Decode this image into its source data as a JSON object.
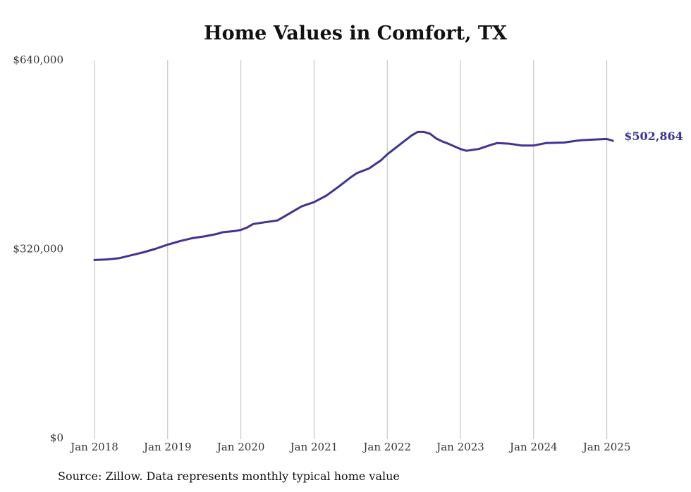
{
  "chart_data": {
    "type": "line",
    "title": "Home Values in Comfort, TX",
    "source": "Source: Zillow. Data represents monthly typical home value",
    "xlabel": "",
    "ylabel": "",
    "ylim": [
      0,
      640000
    ],
    "y_ticks": [
      {
        "value": 0,
        "label": "$0"
      },
      {
        "value": 320000,
        "label": "$320,000"
      },
      {
        "value": 640000,
        "label": "$640,000"
      }
    ],
    "x_ticks": [
      {
        "date": "2018-01",
        "label": "Jan 2018"
      },
      {
        "date": "2019-01",
        "label": "Jan 2019"
      },
      {
        "date": "2020-01",
        "label": "Jan 2020"
      },
      {
        "date": "2021-01",
        "label": "Jan 2021"
      },
      {
        "date": "2022-01",
        "label": "Jan 2022"
      },
      {
        "date": "2023-01",
        "label": "Jan 2023"
      },
      {
        "date": "2024-01",
        "label": "Jan 2024"
      },
      {
        "date": "2025-01",
        "label": "Jan 2025"
      }
    ],
    "grid": "vertical",
    "line_color": "#3d3590",
    "end_label": "$502,864",
    "series": [
      {
        "points": [
          {
            "x": "2018-01",
            "y": 301000
          },
          {
            "x": "2018-03",
            "y": 302000
          },
          {
            "x": "2018-05",
            "y": 304000
          },
          {
            "x": "2018-07",
            "y": 309000
          },
          {
            "x": "2018-09",
            "y": 314000
          },
          {
            "x": "2018-11",
            "y": 320000
          },
          {
            "x": "2019-01",
            "y": 327000
          },
          {
            "x": "2019-03",
            "y": 333000
          },
          {
            "x": "2019-05",
            "y": 338000
          },
          {
            "x": "2019-07",
            "y": 341000
          },
          {
            "x": "2019-09",
            "y": 345000
          },
          {
            "x": "2019-10",
            "y": 348000
          },
          {
            "x": "2019-12",
            "y": 350000
          },
          {
            "x": "2020-01",
            "y": 352000
          },
          {
            "x": "2020-02",
            "y": 356000
          },
          {
            "x": "2020-03",
            "y": 362000
          },
          {
            "x": "2020-05",
            "y": 365000
          },
          {
            "x": "2020-07",
            "y": 368000
          },
          {
            "x": "2020-08",
            "y": 374000
          },
          {
            "x": "2020-10",
            "y": 386000
          },
          {
            "x": "2020-11",
            "y": 392000
          },
          {
            "x": "2021-01",
            "y": 399000
          },
          {
            "x": "2021-03",
            "y": 410000
          },
          {
            "x": "2021-05",
            "y": 425000
          },
          {
            "x": "2021-07",
            "y": 441000
          },
          {
            "x": "2021-08",
            "y": 448000
          },
          {
            "x": "2021-10",
            "y": 456000
          },
          {
            "x": "2021-12",
            "y": 470000
          },
          {
            "x": "2022-01",
            "y": 480000
          },
          {
            "x": "2022-03",
            "y": 496000
          },
          {
            "x": "2022-05",
            "y": 512000
          },
          {
            "x": "2022-06",
            "y": 518000
          },
          {
            "x": "2022-07",
            "y": 518000
          },
          {
            "x": "2022-08",
            "y": 515000
          },
          {
            "x": "2022-09",
            "y": 507000
          },
          {
            "x": "2022-10",
            "y": 502000
          },
          {
            "x": "2022-11",
            "y": 498000
          },
          {
            "x": "2023-01",
            "y": 489000
          },
          {
            "x": "2023-02",
            "y": 486000
          },
          {
            "x": "2023-04",
            "y": 489000
          },
          {
            "x": "2023-06",
            "y": 496000
          },
          {
            "x": "2023-07",
            "y": 499000
          },
          {
            "x": "2023-09",
            "y": 498000
          },
          {
            "x": "2023-11",
            "y": 495000
          },
          {
            "x": "2024-01",
            "y": 495000
          },
          {
            "x": "2024-03",
            "y": 499000
          },
          {
            "x": "2024-06",
            "y": 500000
          },
          {
            "x": "2024-08",
            "y": 503000
          },
          {
            "x": "2024-09",
            "y": 504000
          },
          {
            "x": "2024-11",
            "y": 505000
          },
          {
            "x": "2025-01",
            "y": 506000
          },
          {
            "x": "2025-02",
            "y": 503000
          }
        ]
      }
    ]
  }
}
